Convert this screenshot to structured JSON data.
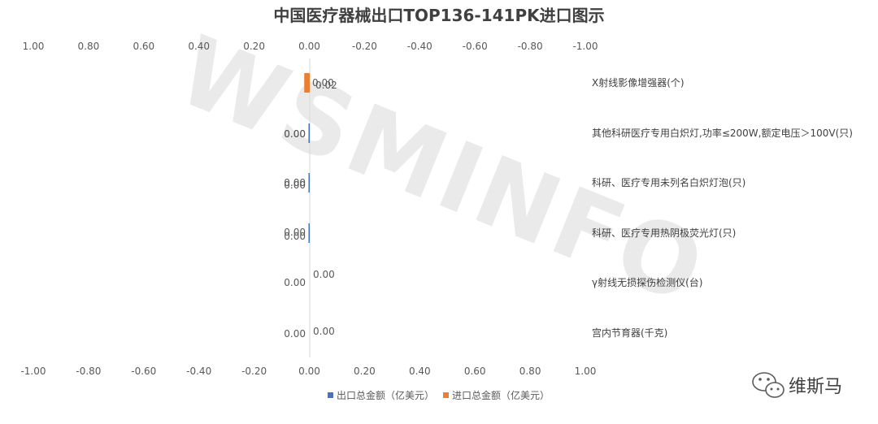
{
  "chart_data": {
    "type": "bar",
    "orientation": "horizontal",
    "title": "中国医疗器械出口TOP136-141PK进口图示",
    "top_axis_ticks": [
      "1.00",
      "0.80",
      "0.60",
      "0.40",
      "0.20",
      "0.00",
      "-0.20",
      "-0.40",
      "-0.60",
      "-0.80",
      "-1.00"
    ],
    "bottom_axis_ticks": [
      "-1.00",
      "-0.80",
      "-0.60",
      "-0.40",
      "-0.20",
      "0.00",
      "0.20",
      "0.40",
      "0.60",
      "0.80",
      "1.00"
    ],
    "xlim": [
      -1,
      1
    ],
    "categories": [
      "X射线影像增强器(个)",
      "其他科研医疗专用白炽灯,功率≤200W,额定电压＞100V(只)",
      "科研、医疗专用未列名白炽灯泡(只)",
      "科研、医疗专用热阴极荧光灯(只)",
      "γ射线无损探伤检测仪(台)",
      "宫内节育器(千克)"
    ],
    "series": [
      {
        "name": "出口总金额（亿美元）",
        "color": "#4472c4",
        "values": [
          0.0,
          0.002,
          0.002,
          0.002,
          0.0,
          0.0
        ],
        "labels": [
          "0.00",
          "0.00",
          "0.00",
          "0.00",
          "0.00",
          "0.00"
        ]
      },
      {
        "name": "进口总金额（亿美元）",
        "color": "#ed7d31",
        "values": [
          0.02,
          0.0,
          0.0,
          0.0,
          0.0,
          0.0
        ],
        "labels": [
          "0.02",
          "0.00",
          "0.00",
          "0.00",
          "0.00",
          "0.00"
        ]
      }
    ],
    "legend_position": "bottom",
    "grid": false
  },
  "watermark": "WSMINFO",
  "brand": {
    "icon": "wechat-icon",
    "text": "维斯马"
  }
}
